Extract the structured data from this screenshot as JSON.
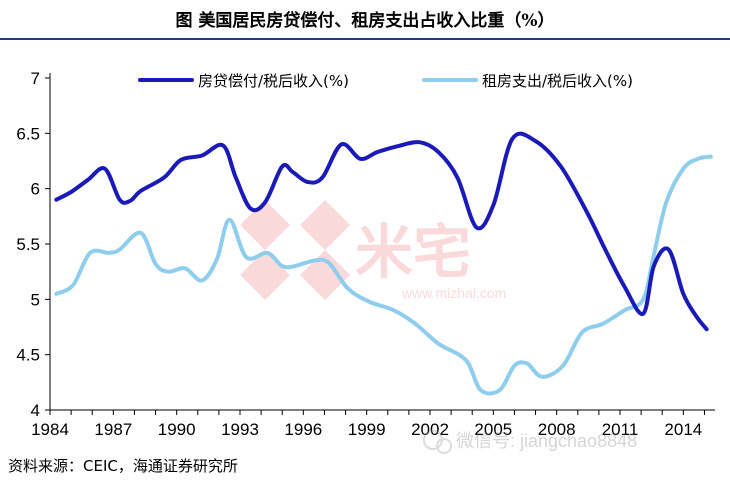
{
  "header": {
    "title": "图   美国居民房贷偿付、租房支出占收入比重（%）"
  },
  "source": "资料来源：CEIC，海通证券研究所",
  "watermarks": {
    "site_logo": "米宅",
    "site_url": "www.mizhai.com",
    "wechat": "微信号: jiangchao8848"
  },
  "colors": {
    "series1": "#1a1ab8",
    "series2": "#8ecdee",
    "title_rule": "#1f3a8a"
  },
  "chart_data": {
    "type": "line",
    "title": "美国居民房贷偿付、租房支出占收入比重（%）",
    "xlabel": "",
    "ylabel": "",
    "xlim": [
      1984,
      2015.5
    ],
    "ylim": [
      4,
      7
    ],
    "yticks": [
      4,
      4.5,
      5,
      5.5,
      6,
      6.5,
      7
    ],
    "ytick_labels": [
      "4",
      "4.5",
      "5",
      "5.5",
      "6",
      "6.5",
      "7"
    ],
    "xticks": [
      1984,
      1987,
      1990,
      1993,
      1996,
      1999,
      2002,
      2005,
      2008,
      2011,
      2014
    ],
    "xtick_labels": [
      "1984",
      "1987",
      "1990",
      "1993",
      "1996",
      "1999",
      "2002",
      "2005",
      "2008",
      "2011",
      "2014"
    ],
    "legend_position": "top",
    "series": [
      {
        "name": "房贷偿付/税后收入(%)",
        "points": [
          [
            1984.3,
            5.9
          ],
          [
            1985.0,
            5.97
          ],
          [
            1985.8,
            6.08
          ],
          [
            1986.6,
            6.18
          ],
          [
            1987.3,
            5.9
          ],
          [
            1987.8,
            5.89
          ],
          [
            1988.3,
            5.98
          ],
          [
            1989.4,
            6.1
          ],
          [
            1990.2,
            6.26
          ],
          [
            1991.2,
            6.3
          ],
          [
            1992.2,
            6.39
          ],
          [
            1992.8,
            6.1
          ],
          [
            1993.5,
            5.82
          ],
          [
            1994.2,
            5.88
          ],
          [
            1995.0,
            6.2
          ],
          [
            1995.5,
            6.15
          ],
          [
            1996.2,
            6.06
          ],
          [
            1996.9,
            6.1
          ],
          [
            1997.8,
            6.4
          ],
          [
            1998.7,
            6.27
          ],
          [
            1999.5,
            6.33
          ],
          [
            2000.4,
            6.38
          ],
          [
            2001.5,
            6.42
          ],
          [
            2002.4,
            6.33
          ],
          [
            2003.3,
            6.1
          ],
          [
            2004.2,
            5.65
          ],
          [
            2005.0,
            5.85
          ],
          [
            2005.9,
            6.45
          ],
          [
            2007.0,
            6.43
          ],
          [
            2008.2,
            6.2
          ],
          [
            2009.4,
            5.8
          ],
          [
            2010.3,
            5.45
          ],
          [
            2011.2,
            5.12
          ],
          [
            2012.1,
            4.87
          ],
          [
            2012.6,
            5.3
          ],
          [
            2013.3,
            5.45
          ],
          [
            2014.0,
            5.05
          ],
          [
            2014.6,
            4.85
          ],
          [
            2015.1,
            4.73
          ]
        ]
      },
      {
        "name": "租房支出/税后收入(%)",
        "points": [
          [
            1984.3,
            5.05
          ],
          [
            1985.1,
            5.13
          ],
          [
            1985.9,
            5.42
          ],
          [
            1986.8,
            5.42
          ],
          [
            1987.3,
            5.45
          ],
          [
            1988.3,
            5.6
          ],
          [
            1989.0,
            5.32
          ],
          [
            1989.6,
            5.25
          ],
          [
            1990.4,
            5.28
          ],
          [
            1991.2,
            5.17
          ],
          [
            1991.9,
            5.36
          ],
          [
            1992.5,
            5.72
          ],
          [
            1993.3,
            5.38
          ],
          [
            1994.3,
            5.42
          ],
          [
            1995.0,
            5.3
          ],
          [
            1995.6,
            5.3
          ],
          [
            1996.5,
            5.35
          ],
          [
            1997.2,
            5.33
          ],
          [
            1998.1,
            5.1
          ],
          [
            1999.1,
            4.98
          ],
          [
            2000.3,
            4.9
          ],
          [
            2001.3,
            4.78
          ],
          [
            2002.4,
            4.6
          ],
          [
            2003.7,
            4.45
          ],
          [
            2004.4,
            4.18
          ],
          [
            2005.3,
            4.18
          ],
          [
            2006.0,
            4.4
          ],
          [
            2006.6,
            4.42
          ],
          [
            2007.3,
            4.3
          ],
          [
            2008.3,
            4.4
          ],
          [
            2009.2,
            4.7
          ],
          [
            2010.2,
            4.78
          ],
          [
            2011.2,
            4.9
          ],
          [
            2012.1,
            5.0
          ],
          [
            2012.6,
            5.4
          ],
          [
            2013.2,
            5.88
          ],
          [
            2014.0,
            6.18
          ],
          [
            2014.7,
            6.27
          ],
          [
            2015.3,
            6.29
          ]
        ]
      }
    ]
  }
}
